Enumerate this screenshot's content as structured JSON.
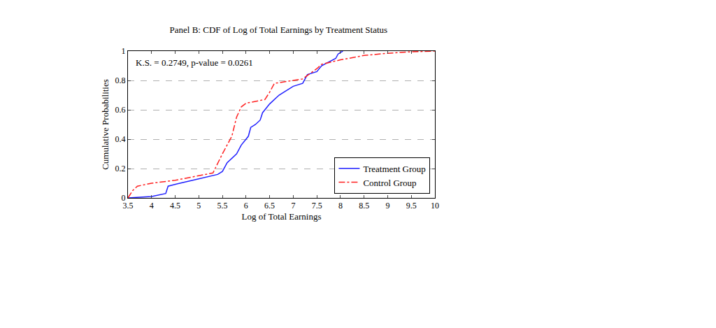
{
  "chart_data": {
    "type": "line",
    "title": "Panel B: CDF of Log of Total Earnings by Treatment Status",
    "x_label": "Log of Total Earnings",
    "y_label": "Cumulative Probabilities",
    "annotations": [
      "K.S. = 0.2749, p-value = 0.0261"
    ],
    "series": [
      {
        "name": "Treatment Group",
        "color": "#1f1fff",
        "line_style": "solid",
        "x": [
          3.5,
          3.8,
          4.0,
          4.3,
          4.35,
          4.6,
          5.0,
          5.4,
          5.5,
          5.6,
          5.8,
          5.9,
          6.0,
          6.05,
          6.1,
          6.2,
          6.3,
          6.35,
          6.5,
          6.7,
          7.0,
          7.2,
          7.3,
          7.5,
          7.6,
          7.9,
          7.95,
          8.05
        ],
        "values": [
          0,
          0.005,
          0.01,
          0.03,
          0.08,
          0.1,
          0.13,
          0.16,
          0.18,
          0.24,
          0.3,
          0.36,
          0.4,
          0.42,
          0.48,
          0.5,
          0.53,
          0.58,
          0.64,
          0.7,
          0.76,
          0.78,
          0.84,
          0.86,
          0.9,
          0.95,
          0.98,
          1.0
        ]
      },
      {
        "name": "Control Group",
        "color": "#ff2020",
        "line_style": "dashdot",
        "x": [
          3.5,
          3.6,
          3.7,
          4.0,
          4.5,
          5.0,
          5.3,
          5.5,
          5.7,
          5.8,
          5.9,
          6.0,
          6.4,
          6.5,
          6.6,
          7.0,
          7.2,
          7.5,
          7.6,
          8.0,
          8.5,
          9.0,
          9.5,
          10.0
        ],
        "values": [
          0,
          0.05,
          0.08,
          0.1,
          0.12,
          0.15,
          0.17,
          0.3,
          0.42,
          0.55,
          0.62,
          0.645,
          0.67,
          0.72,
          0.78,
          0.8,
          0.81,
          0.88,
          0.91,
          0.94,
          0.97,
          0.985,
          0.995,
          1.0
        ]
      }
    ],
    "xlim": [
      3.5,
      10
    ],
    "xticks": [
      3.5,
      4,
      4.5,
      5,
      5.5,
      6,
      6.5,
      7,
      7.5,
      8,
      8.5,
      9,
      9.5,
      10
    ],
    "ylim": [
      0,
      1
    ],
    "yticks": [
      0,
      0.2,
      0.4,
      0.6,
      0.8,
      1
    ],
    "grid": true,
    "legend": "bottom right"
  }
}
